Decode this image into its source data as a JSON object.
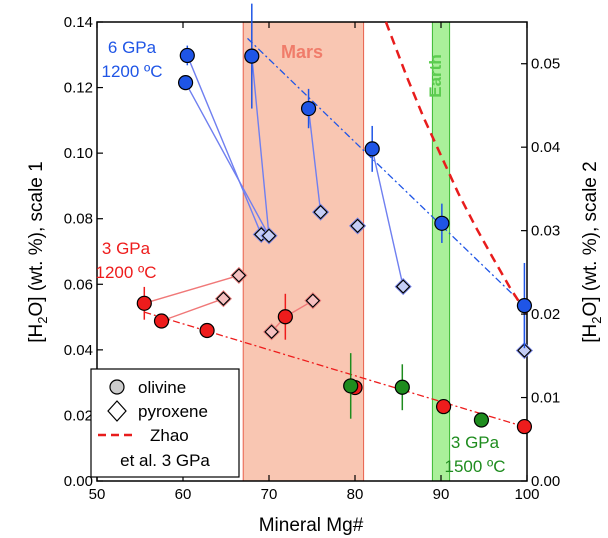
{
  "chart_data": {
    "type": "scatter",
    "xlabel": "Mineral Mg#",
    "ylabel_left_pre": "[H",
    "ylabel_left_sub": "2",
    "ylabel_left_post": "O] (wt. %), scale 1",
    "ylabel_right_pre": "[H",
    "ylabel_right_sub": "2",
    "ylabel_right_post": "O] (wt. %), scale 2",
    "xlim": [
      50,
      100
    ],
    "ylim_left": [
      0.0,
      0.14
    ],
    "ylim_right": [
      0.0,
      0.055
    ],
    "x_ticks": [
      "50",
      "60",
      "70",
      "80",
      "90",
      "100"
    ],
    "y_ticks_left": [
      "0.00",
      "0.02",
      "0.04",
      "0.06",
      "0.08",
      "0.10",
      "0.12",
      "0.14"
    ],
    "y_ticks_right": [
      "0.00",
      "0.01",
      "0.02",
      "0.03",
      "0.04",
      "0.05"
    ],
    "x_tick_values": [
      50,
      60,
      70,
      80,
      90,
      100
    ],
    "y_tick_values_left": [
      0,
      0.02,
      0.04,
      0.06,
      0.08,
      0.1,
      0.12,
      0.14
    ],
    "y_tick_values_right": [
      0,
      0.01,
      0.02,
      0.03,
      0.04,
      0.05
    ],
    "bands": [
      {
        "name": "Mars",
        "x_range": [
          67,
          81
        ],
        "color": "#f9c6b2",
        "edge": "#e8604c",
        "label_color": "#f07c6a"
      },
      {
        "name": "Earth",
        "x_range": [
          89,
          91
        ],
        "color": "#aaf09a",
        "edge": "#3cb834",
        "label_color": "#5ccc50"
      }
    ],
    "series": [
      {
        "name": "6 GPa 1200 ºC",
        "color": "#1f55e6",
        "line_color": "#6f7ff0",
        "olivine": [
          {
            "x": 60.5,
            "y": 0.1298,
            "err": 0.003
          },
          {
            "x": 60.3,
            "y": 0.1215
          },
          {
            "x": 68.0,
            "y": 0.1296,
            "err": 0.016
          },
          {
            "x": 74.6,
            "y": 0.1136,
            "err": 0.006
          },
          {
            "x": 82.0,
            "y": 0.1013,
            "err": 0.007
          },
          {
            "x": 90.1,
            "y": 0.0786,
            "err": 0.006
          },
          {
            "x": 99.7,
            "y": 0.0535,
            "err": 0.013
          }
        ],
        "pyroxene": [
          {
            "x": 69.1,
            "y": 0.0752
          },
          {
            "x": 70.0,
            "y": 0.0748
          },
          {
            "x": 76.0,
            "y": 0.082
          },
          {
            "x": 80.3,
            "y": 0.0778
          },
          {
            "x": 85.6,
            "y": 0.0593
          },
          {
            "x": 99.7,
            "y": 0.0398
          }
        ],
        "pairs": [
          [
            0,
            0
          ],
          [
            1,
            1
          ],
          [
            2,
            1
          ],
          [
            3,
            2
          ],
          [
            4,
            4
          ],
          [
            6,
            5
          ]
        ],
        "trend": [
          [
            67.5,
            0.135
          ],
          [
            99.7,
            0.0535
          ]
        ]
      },
      {
        "name": "3 GPa 1200 ºC",
        "color": "#ee1c1c",
        "line_color": "#f07878",
        "olivine": [
          {
            "x": 55.5,
            "y": 0.0542,
            "err": 0.005
          },
          {
            "x": 57.5,
            "y": 0.0488
          },
          {
            "x": 62.8,
            "y": 0.0459
          },
          {
            "x": 71.9,
            "y": 0.0501,
            "err": 0.007
          },
          {
            "x": 80.0,
            "y": 0.0285
          },
          {
            "x": 90.3,
            "y": 0.0227
          },
          {
            "x": 99.7,
            "y": 0.0166
          }
        ],
        "pyroxene": [
          {
            "x": 66.5,
            "y": 0.0627
          },
          {
            "x": 64.7,
            "y": 0.0556
          },
          {
            "x": 70.3,
            "y": 0.0455
          },
          {
            "x": 75.1,
            "y": 0.055
          }
        ],
        "pairs": [
          [
            0,
            0
          ],
          [
            1,
            1
          ],
          [
            3,
            2
          ],
          [
            3,
            3
          ]
        ],
        "trend": [
          [
            55.5,
            0.0515
          ],
          [
            100,
            0.0163
          ]
        ]
      },
      {
        "name": "3 GPa 1500 ºC",
        "color": "#1e8c1e",
        "olivine": [
          {
            "x": 79.5,
            "y": 0.029,
            "err": 0.01
          },
          {
            "x": 85.5,
            "y": 0.0286,
            "err": 0.007
          },
          {
            "x": 94.7,
            "y": 0.0186
          }
        ]
      }
    ],
    "zhao_curve": {
      "name": "Zhao et al. 3 GPa",
      "color": "#e81c1c",
      "axis": "scale 2",
      "x": [
        83.6,
        86,
        88,
        90,
        92,
        94,
        96,
        98,
        100
      ],
      "y": [
        0.055,
        0.0485,
        0.0435,
        0.039,
        0.0345,
        0.0305,
        0.0268,
        0.0232,
        0.02
      ]
    },
    "legend": {
      "position": "bottom-left",
      "olivine_label": "olivine",
      "pyroxene_label": "pyroxene",
      "zhao_label_line1": "Zhao",
      "zhao_label_line2": "et al. 3 GPa"
    },
    "annotations": {
      "blue_line1": "6 GPa",
      "blue_line2": "1200 ºC",
      "red_line1": "3 GPa",
      "red_line2": "1200 ºC",
      "green_line1": "3 GPa",
      "green_line2": "1500 ºC",
      "mars": "Mars",
      "earth": "Earth"
    }
  }
}
